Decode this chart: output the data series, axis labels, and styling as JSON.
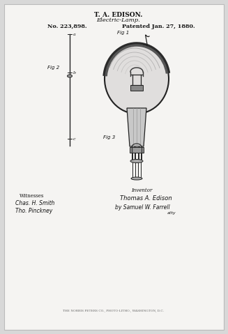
{
  "bg_color": "#d8d8d8",
  "paper_color": "#f5f4f2",
  "title_line1": "T. A. EDISON.",
  "title_line2": "Electric-Lamp.",
  "patent_no": "No. 223,898.",
  "patent_date": "Patented Jan. 27, 1880.",
  "fig1_label": "Fig 1",
  "fig2_label": "Fig 2",
  "fig3_label": "Fig 3",
  "witnesses_label": "Witnesses",
  "inventor_label": "Inventor",
  "witness1_script": "Chas. H. Smith",
  "witness2_script": "Tho. Pinckney",
  "inventor_name_script": "Thomas A. Edison",
  "atty_script": "by Samuel W. Farrell",
  "atty_suffix": "atty",
  "bottom_text": "THE NORRIS PETERS CO., PHOTO-LITHO., WASHINGTON, D.C.",
  "text_color": "#111111",
  "line_color": "#222222",
  "dark_gray": "#444444",
  "mid_gray": "#888888",
  "light_gray": "#cccccc"
}
